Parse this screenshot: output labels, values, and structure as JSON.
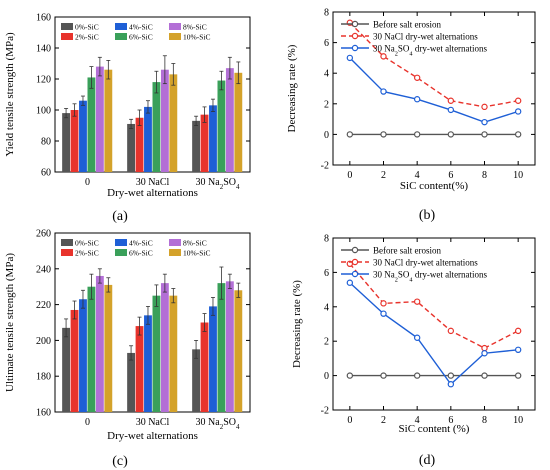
{
  "chart_data": [
    {
      "id": "a",
      "type": "bar",
      "panel_label": "(a)",
      "ylabel": "Yield tensile strength (MPa)",
      "xlabel": "Dry-wet alternations",
      "ylim": [
        60,
        160
      ],
      "yticks": [
        60,
        80,
        100,
        120,
        140,
        160
      ],
      "categories": [
        "0",
        "30 NaCl",
        "30 Na2SO4"
      ],
      "legend_position": "top-center",
      "series": [
        {
          "name": "0%-SiC",
          "color": "#555555",
          "values": [
            98,
            91,
            93
          ],
          "errors": [
            3,
            3,
            3
          ]
        },
        {
          "name": "2%-SiC",
          "color": "#e8332c",
          "values": [
            100,
            95,
            97
          ],
          "errors": [
            4,
            5,
            5
          ]
        },
        {
          "name": "4%-SiC",
          "color": "#1e5fd6",
          "values": [
            106,
            102,
            103
          ],
          "errors": [
            3,
            4,
            4
          ]
        },
        {
          "name": "6%-SiC",
          "color": "#3aa05a",
          "values": [
            121,
            118,
            119
          ],
          "errors": [
            7,
            7,
            6
          ]
        },
        {
          "name": "8%-SiC",
          "color": "#b36fd6",
          "values": [
            128,
            126,
            127
          ],
          "errors": [
            6,
            9,
            7
          ]
        },
        {
          "name": "10%-SiC",
          "color": "#d4a22a",
          "values": [
            126,
            123,
            124
          ],
          "errors": [
            6,
            7,
            7
          ]
        }
      ]
    },
    {
      "id": "b",
      "type": "line",
      "panel_label": "(b)",
      "ylabel": "Decreasing rate (%)",
      "xlabel": "SiC content(%)",
      "xlim": [
        -1,
        11
      ],
      "ylim": [
        -2,
        8
      ],
      "xticks": [
        0,
        2,
        4,
        6,
        8,
        10
      ],
      "yticks": [
        -2,
        0,
        2,
        4,
        6,
        8
      ],
      "x": [
        0,
        2,
        4,
        6,
        8,
        10
      ],
      "legend_position": "top-left",
      "series": [
        {
          "name": "Before salt erosion",
          "color": "#555555",
          "style": "solid",
          "values": [
            0,
            0,
            0,
            0,
            0,
            0
          ]
        },
        {
          "name": "30 NaCl dry-wet alternations",
          "color": "#e8332c",
          "style": "dashed",
          "values": [
            7.3,
            5.1,
            3.7,
            2.2,
            1.8,
            2.2
          ]
        },
        {
          "name": "30 Na2SO4 dry-wet alternations",
          "color": "#1e5fd6",
          "style": "solid",
          "values": [
            5.0,
            2.8,
            2.3,
            1.6,
            0.8,
            1.5
          ]
        }
      ]
    },
    {
      "id": "c",
      "type": "bar",
      "panel_label": "(c)",
      "ylabel": "Ultimate tensile strength (MPa)",
      "xlabel": "Dry-wet alternations",
      "ylim": [
        160,
        260
      ],
      "yticks": [
        160,
        180,
        200,
        220,
        240,
        260
      ],
      "categories": [
        "0",
        "30 NaCl",
        "30 Na2SO4"
      ],
      "legend_position": "top-center",
      "series": [
        {
          "name": "0%-SiC",
          "color": "#555555",
          "values": [
            207,
            193,
            195
          ],
          "errors": [
            5,
            4,
            5
          ]
        },
        {
          "name": "2%-SiC",
          "color": "#e8332c",
          "values": [
            217,
            208,
            210
          ],
          "errors": [
            5,
            5,
            5
          ]
        },
        {
          "name": "4%-SiC",
          "color": "#1e5fd6",
          "values": [
            223,
            214,
            219
          ],
          "errors": [
            5,
            5,
            5
          ]
        },
        {
          "name": "6%-SiC",
          "color": "#3aa05a",
          "values": [
            230,
            225,
            232
          ],
          "errors": [
            7,
            6,
            9
          ]
        },
        {
          "name": "8%-SiC",
          "color": "#b36fd6",
          "values": [
            236,
            232,
            233
          ],
          "errors": [
            4,
            5,
            4
          ]
        },
        {
          "name": "10%-SiC",
          "color": "#d4a22a",
          "values": [
            231,
            225,
            228
          ],
          "errors": [
            4,
            4,
            4
          ]
        }
      ]
    },
    {
      "id": "d",
      "type": "line",
      "panel_label": "(d)",
      "ylabel": "Decreasing rate (%)",
      "xlabel": "SiC content (%)",
      "xlim": [
        -1,
        11
      ],
      "ylim": [
        -2,
        8
      ],
      "xticks": [
        0,
        2,
        4,
        6,
        8,
        10
      ],
      "yticks": [
        -2,
        0,
        2,
        4,
        6,
        8
      ],
      "x": [
        0,
        2,
        4,
        6,
        8,
        10
      ],
      "legend_position": "top-left",
      "series": [
        {
          "name": "Before salt erosion",
          "color": "#555555",
          "style": "solid",
          "values": [
            0,
            0,
            0,
            0,
            0,
            0
          ]
        },
        {
          "name": "30 NaCl dry-wet alternations",
          "color": "#e8332c",
          "style": "dashed",
          "values": [
            6.5,
            4.2,
            4.3,
            2.6,
            1.6,
            2.6
          ]
        },
        {
          "name": "30 Na2SO4 dry-wet alternations",
          "color": "#1e5fd6",
          "style": "solid",
          "values": [
            5.4,
            3.6,
            2.2,
            -0.5,
            1.3,
            1.5
          ]
        }
      ]
    }
  ]
}
